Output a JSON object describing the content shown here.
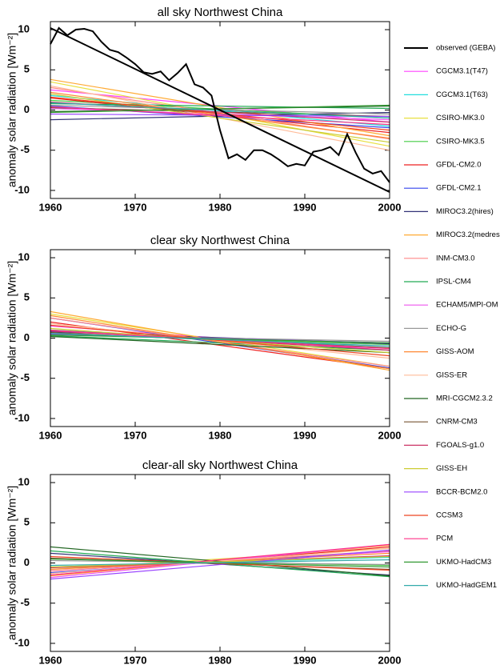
{
  "chart_data": [
    {
      "type": "line",
      "title": "all sky Northwest China",
      "ylabel": "anomaly solar radiation [Wm⁻²]",
      "xlim": [
        1960,
        2000
      ],
      "ylim": [
        -11,
        11
      ],
      "xticks": [
        1960,
        1970,
        1980,
        1990,
        2000
      ],
      "yticks": [
        -10,
        -5,
        0,
        5,
        10
      ],
      "series": [
        {
          "name": "observed (GEBA)",
          "color": "#000000",
          "x": [
            1960,
            1961,
            1962,
            1963,
            1964,
            1965,
            1966,
            1967,
            1968,
            1969,
            1970,
            1971,
            1972,
            1973,
            1974,
            1975,
            1976,
            1977,
            1978,
            1979,
            1980,
            1981,
            1982,
            1983,
            1984,
            1985,
            1986,
            1987,
            1988,
            1989,
            1990,
            1991,
            1992,
            1993,
            1994,
            1995,
            1996,
            1997,
            1998,
            1999,
            2000
          ],
          "values": [
            8.2,
            10.2,
            9.3,
            10,
            10.1,
            9.8,
            8.5,
            7.5,
            7.2,
            6.5,
            5.7,
            4.7,
            4.5,
            4.8,
            3.7,
            4.6,
            5.7,
            3.2,
            2.8,
            1.8,
            -2.5,
            -6,
            -5.5,
            -6.2,
            -5,
            -5,
            -5.5,
            -6.2,
            -7,
            -6.7,
            -6.9,
            -5.2,
            -5,
            -4.6,
            -5.6,
            -3,
            -5.3,
            -7.3,
            -7.9,
            -7.6,
            -9
          ]
        },
        {
          "name": "CGCM3.1(T47)",
          "color": "#ff44ff",
          "x": [
            1960,
            2000
          ],
          "values": [
            2.5,
            -1.5
          ]
        },
        {
          "name": "CGCM3.1(T63)",
          "color": "#22dddd",
          "x": [
            1960,
            2000
          ],
          "values": [
            1.8,
            -2
          ]
        },
        {
          "name": "CSIRO-MK3.0",
          "color": "#e8e040",
          "x": [
            1960,
            2000
          ],
          "values": [
            3.5,
            -4.5
          ]
        },
        {
          "name": "CSIRO-MK3.5",
          "color": "#44cc44",
          "x": [
            1960,
            2000
          ],
          "values": [
            1.2,
            -1
          ]
        },
        {
          "name": "GFDL-CM2.0",
          "color": "#ee2222",
          "x": [
            1960,
            2000
          ],
          "values": [
            1.5,
            -2.8
          ]
        },
        {
          "name": "GFDL-CM2.1",
          "color": "#3344ee",
          "x": [
            1960,
            2000
          ],
          "values": [
            0.5,
            -2.2
          ]
        },
        {
          "name": "MIROC3.2(hires)",
          "color": "#333377",
          "x": [
            1960,
            2000
          ],
          "values": [
            -1.2,
            -0.3
          ]
        },
        {
          "name": "MIROC3.2(medres)",
          "color": "#ffaa33",
          "x": [
            1960,
            2000
          ],
          "values": [
            3.8,
            -3.2
          ]
        },
        {
          "name": "INM-CM3.0",
          "color": "#ff8888",
          "x": [
            1960,
            2000
          ],
          "values": [
            2.8,
            -3.6
          ]
        },
        {
          "name": "IPSL-CM4",
          "color": "#22aa55",
          "x": [
            1960,
            2000
          ],
          "values": [
            0.8,
            0.2
          ]
        },
        {
          "name": "ECHAM5/MPI-OM",
          "color": "#ee55ee",
          "x": [
            1960,
            2000
          ],
          "values": [
            0.2,
            -1.2
          ]
        },
        {
          "name": "ECHO-G",
          "color": "#999999",
          "x": [
            1960,
            2000
          ],
          "values": [
            0.6,
            -0.5
          ]
        },
        {
          "name": "GISS-AOM",
          "color": "#ff8833",
          "x": [
            1960,
            2000
          ],
          "values": [
            2.2,
            -3.5
          ]
        },
        {
          "name": "GISS-ER",
          "color": "#ffbb99",
          "x": [
            1960,
            2000
          ],
          "values": [
            3,
            -5
          ]
        },
        {
          "name": "MRI-CGCM2.3.2",
          "color": "#226622",
          "x": [
            1960,
            2000
          ],
          "values": [
            -0.2,
            0.5
          ]
        },
        {
          "name": "CNRM-CM3",
          "color": "#775533",
          "x": [
            1960,
            2000
          ],
          "values": [
            0.3,
            -0.8
          ]
        },
        {
          "name": "FGOALS-g1.0",
          "color": "#cc3366",
          "x": [
            1960,
            2000
          ],
          "values": [
            1,
            -1.5
          ]
        },
        {
          "name": "GISS-EH",
          "color": "#cccc33",
          "x": [
            1960,
            2000
          ],
          "values": [
            2,
            -4
          ]
        },
        {
          "name": "BCCR-BCM2.0",
          "color": "#9944ff",
          "x": [
            1960,
            2000
          ],
          "values": [
            -0.5,
            -0.8
          ]
        },
        {
          "name": "CCSM3",
          "color": "#ee4422",
          "x": [
            1960,
            2000
          ],
          "values": [
            1.6,
            -2.5
          ]
        },
        {
          "name": "PCM",
          "color": "#ff3388",
          "x": [
            1960,
            2000
          ],
          "values": [
            0.4,
            -1.8
          ]
        },
        {
          "name": "UKMO-HadCM3",
          "color": "#339933",
          "x": [
            1960,
            2000
          ],
          "values": [
            -0.3,
            0.6
          ]
        },
        {
          "name": "UKMO-HadGEM1",
          "color": "#33aaaa",
          "x": [
            1960,
            2000
          ],
          "values": [
            0.9,
            -1
          ]
        },
        {
          "color": "#000000",
          "x": [
            1960,
            2000
          ],
          "values": [
            10.2,
            -10.2
          ]
        }
      ]
    },
    {
      "type": "line",
      "title": "clear sky Northwest China",
      "ylabel": "anomaly solar radiation [Wm⁻²]",
      "xlim": [
        1960,
        2000
      ],
      "ylim": [
        -11,
        11
      ],
      "xticks": [
        1960,
        1970,
        1980,
        1990,
        2000
      ],
      "yticks": [
        -10,
        -5,
        0,
        5,
        10
      ],
      "series": [
        {
          "color": "#ff44ff",
          "x": [
            1960,
            2000
          ],
          "values": [
            1.5,
            -1.5
          ]
        },
        {
          "color": "#22dddd",
          "x": [
            1960,
            2000
          ],
          "values": [
            1,
            -1.2
          ]
        },
        {
          "color": "#e8e040",
          "x": [
            1960,
            2000
          ],
          "values": [
            3,
            -3.5
          ]
        },
        {
          "color": "#44cc44",
          "x": [
            1960,
            2000
          ],
          "values": [
            0.5,
            -0.8
          ]
        },
        {
          "color": "#ee2222",
          "x": [
            1960,
            2000
          ],
          "values": [
            2,
            -3.8
          ]
        },
        {
          "color": "#3344ee",
          "x": [
            1960,
            2000
          ],
          "values": [
            2.5,
            -3.7
          ]
        },
        {
          "color": "#333377",
          "x": [
            1960,
            2000
          ],
          "values": [
            0.8,
            -0.7
          ]
        },
        {
          "color": "#ffaa33",
          "x": [
            1960,
            2000
          ],
          "values": [
            3.3,
            -4
          ]
        },
        {
          "color": "#ff8888",
          "x": [
            1960,
            2000
          ],
          "values": [
            2.5,
            -3.5
          ]
        },
        {
          "color": "#22aa55",
          "x": [
            1960,
            2000
          ],
          "values": [
            0.3,
            -1.5
          ]
        },
        {
          "color": "#ee55ee",
          "x": [
            1960,
            2000
          ],
          "values": [
            0.6,
            -1
          ]
        },
        {
          "color": "#999999",
          "x": [
            1960,
            2000
          ],
          "values": [
            0.4,
            -0.4
          ]
        },
        {
          "color": "#ff8833",
          "x": [
            1960,
            2000
          ],
          "values": [
            2.8,
            -3.8
          ]
        },
        {
          "color": "#ffbb99",
          "x": [
            1960,
            2000
          ],
          "values": [
            1.8,
            -2.5
          ]
        },
        {
          "color": "#226622",
          "x": [
            1960,
            2000
          ],
          "values": [
            0.2,
            -1.8
          ]
        },
        {
          "color": "#775533",
          "x": [
            1960,
            2000
          ],
          "values": [
            0.7,
            -1.2
          ]
        },
        {
          "color": "#cc3366",
          "x": [
            1960,
            2000
          ],
          "values": [
            1,
            -1.5
          ]
        },
        {
          "color": "#cccc33",
          "x": [
            1960,
            2000
          ],
          "values": [
            1.2,
            -1.8
          ]
        },
        {
          "color": "#9944ff",
          "x": [
            1960,
            2000
          ],
          "values": [
            0.5,
            -0.6
          ]
        },
        {
          "color": "#ee4422",
          "x": [
            1960,
            2000
          ],
          "values": [
            1.6,
            -2.2
          ]
        },
        {
          "color": "#ff3388",
          "x": [
            1960,
            2000
          ],
          "values": [
            0.9,
            -1.3
          ]
        },
        {
          "color": "#339933",
          "x": [
            1960,
            2000
          ],
          "values": [
            0.4,
            -0.6
          ]
        },
        {
          "color": "#33aaaa",
          "x": [
            1960,
            2000
          ],
          "values": [
            0.6,
            -1
          ]
        }
      ]
    },
    {
      "type": "line",
      "title": "clear-all sky Northwest China",
      "ylabel": "anomaly solar radiation [Wm⁻²]",
      "xlim": [
        1960,
        2000
      ],
      "ylim": [
        -11,
        11
      ],
      "xticks": [
        1960,
        1970,
        1980,
        1990,
        2000
      ],
      "yticks": [
        -10,
        -5,
        0,
        5,
        10
      ],
      "series": [
        {
          "color": "#ff44ff",
          "x": [
            1960,
            2000
          ],
          "values": [
            -1,
            1.4
          ]
        },
        {
          "color": "#22dddd",
          "x": [
            1960,
            2000
          ],
          "values": [
            -0.5,
            0.7
          ]
        },
        {
          "color": "#e8e040",
          "x": [
            1960,
            2000
          ],
          "values": [
            -0.8,
            1.8
          ]
        },
        {
          "color": "#44cc44",
          "x": [
            1960,
            2000
          ],
          "values": [
            0.5,
            -0.3
          ]
        },
        {
          "color": "#ee2222",
          "x": [
            1960,
            2000
          ],
          "values": [
            -1.5,
            2
          ]
        },
        {
          "color": "#3344ee",
          "x": [
            1960,
            2000
          ],
          "values": [
            -1.2,
            1.5
          ]
        },
        {
          "color": "#333377",
          "x": [
            1960,
            2000
          ],
          "values": [
            1.2,
            -1.5
          ]
        },
        {
          "color": "#ffaa33",
          "x": [
            1960,
            2000
          ],
          "values": [
            -1.6,
            2.2
          ]
        },
        {
          "color": "#ff8888",
          "x": [
            1960,
            2000
          ],
          "values": [
            -1,
            1.5
          ]
        },
        {
          "color": "#22aa55",
          "x": [
            1960,
            2000
          ],
          "values": [
            1.5,
            -1.7
          ]
        },
        {
          "color": "#ee55ee",
          "x": [
            1960,
            2000
          ],
          "values": [
            -1.8,
            2.3
          ]
        },
        {
          "color": "#999999",
          "x": [
            1960,
            2000
          ],
          "values": [
            0.3,
            -0.2
          ]
        },
        {
          "color": "#ff8833",
          "x": [
            1960,
            2000
          ],
          "values": [
            -0.8,
            1.2
          ]
        },
        {
          "color": "#ffbb99",
          "x": [
            1960,
            2000
          ],
          "values": [
            -1.3,
            1.8
          ]
        },
        {
          "color": "#226622",
          "x": [
            1960,
            2000
          ],
          "values": [
            2,
            -1.6
          ]
        },
        {
          "color": "#775533",
          "x": [
            1960,
            2000
          ],
          "values": [
            0.6,
            -0.8
          ]
        },
        {
          "color": "#cc3366",
          "x": [
            1960,
            2000
          ],
          "values": [
            -0.6,
            0.9
          ]
        },
        {
          "color": "#cccc33",
          "x": [
            1960,
            2000
          ],
          "values": [
            -0.5,
            0.8
          ]
        },
        {
          "color": "#9944ff",
          "x": [
            1960,
            2000
          ],
          "values": [
            -2,
            1.6
          ]
        },
        {
          "color": "#ee4422",
          "x": [
            1960,
            2000
          ],
          "values": [
            0.8,
            -0.9
          ]
        },
        {
          "color": "#ff3388",
          "x": [
            1960,
            2000
          ],
          "values": [
            -1.5,
            2.3
          ]
        },
        {
          "color": "#339933",
          "x": [
            1960,
            2000
          ],
          "values": [
            0.5,
            -0.5
          ]
        },
        {
          "color": "#33aaaa",
          "x": [
            1960,
            2000
          ],
          "values": [
            -0.3,
            0.4
          ]
        }
      ]
    }
  ]
}
